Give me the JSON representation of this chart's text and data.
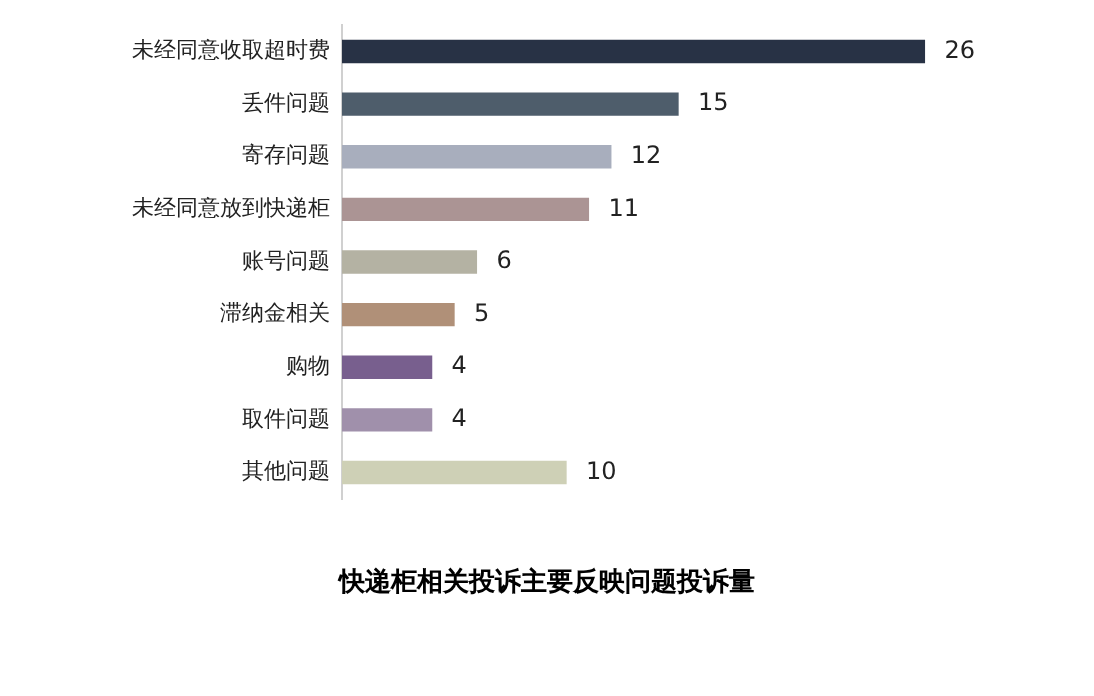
{
  "chart_data": {
    "type": "bar",
    "orientation": "horizontal",
    "title": "快递柜相关投诉主要反映问题投诉量",
    "categories": [
      "未经同意收取超时费",
      "丢件问题",
      "寄存问题",
      "未经同意放到快递柜",
      "账号问题",
      "滞纳金相关",
      "购物",
      "取件问题",
      "其他问题"
    ],
    "values": [
      26,
      15,
      12,
      11,
      6,
      5,
      4,
      4,
      10
    ],
    "colors": [
      "#283245",
      "#4e5d6b",
      "#a8aebd",
      "#ab9494",
      "#b4b2a3",
      "#b09078",
      "#785f8e",
      "#a090ab",
      "#ced0b6"
    ],
    "data_labels": true,
    "legend": false
  }
}
